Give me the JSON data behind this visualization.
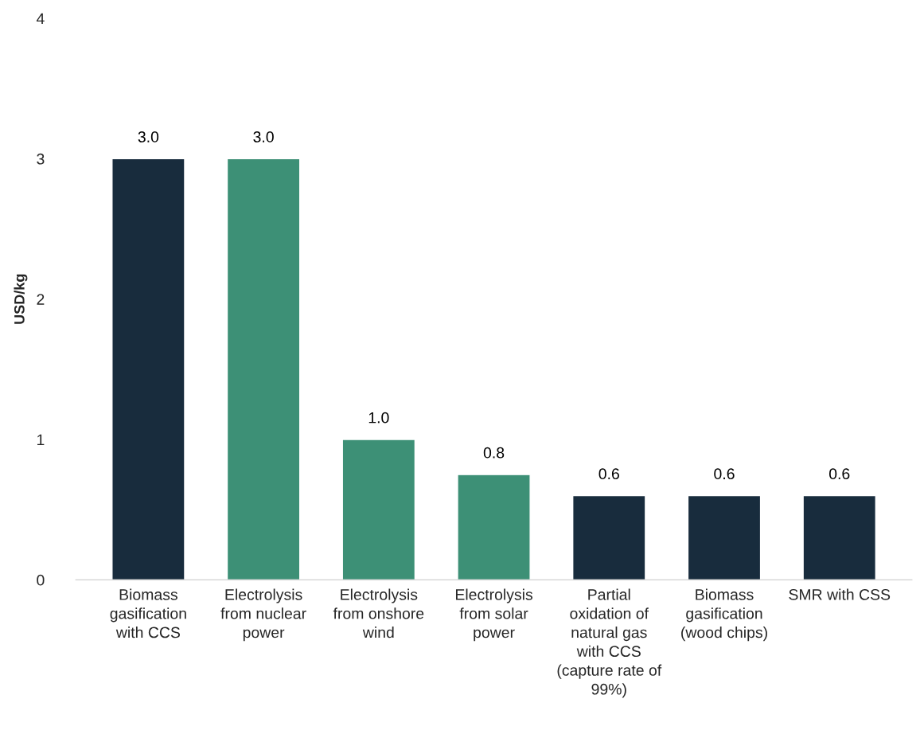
{
  "chart_data": {
    "type": "bar",
    "ylabel": "USD/kg",
    "categories": [
      "Biomass gasification with CCS",
      "Electrolysis from nuclear power",
      "Electrolysis from onshore wind",
      "Electrolysis from solar power",
      "Partial oxidation of natural gas with CCS (capture rate of 99%)",
      "Biomass gasification (wood chips)",
      "SMR with CSS"
    ],
    "values": [
      3.0,
      3.0,
      1.0,
      0.75,
      0.6,
      0.6,
      0.6
    ],
    "value_labels": [
      "3.0",
      "3.0",
      "1.0",
      "0.8",
      "0.6",
      "0.6",
      "0.6"
    ],
    "colors": [
      "#182c3d",
      "#3d9076",
      "#3d9076",
      "#3d9076",
      "#182c3d",
      "#182c3d",
      "#182c3d"
    ],
    "ylim": [
      0,
      4
    ],
    "yticks": [
      0,
      1,
      2,
      3,
      4
    ],
    "grid": false,
    "legend": false
  }
}
